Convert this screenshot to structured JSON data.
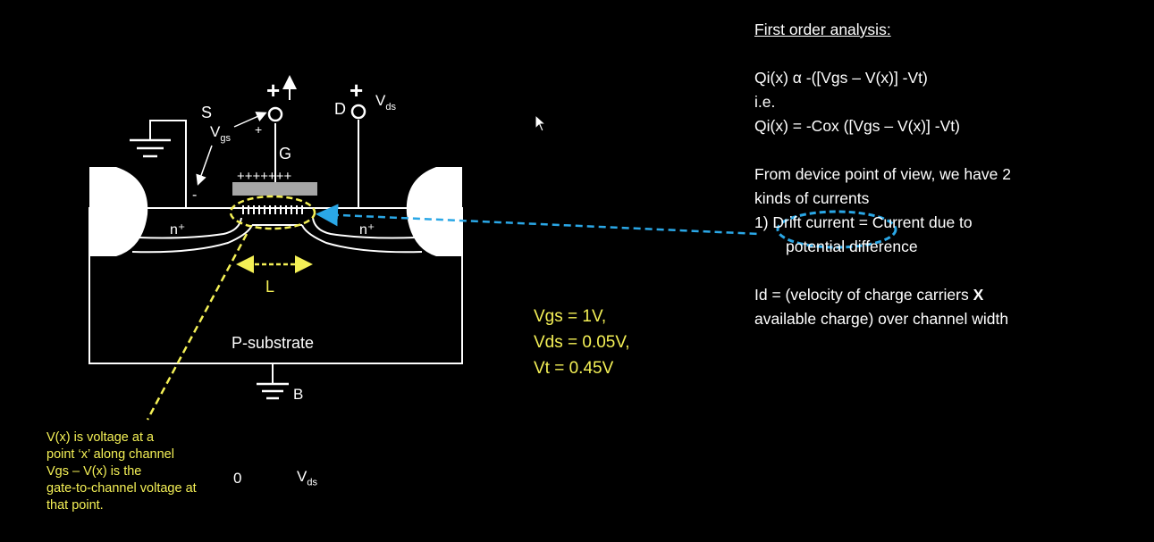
{
  "diagram": {
    "source_label": "S",
    "gate_label": "G",
    "drain_label": "D",
    "vgs_label": "V",
    "vgs_sub": "gs",
    "vds_label": "V",
    "vds_sub": "ds",
    "plus": "+",
    "minus": "-",
    "gate_charges": "+++++++",
    "n_plus_left": "n⁺",
    "n_plus_right": "n⁺",
    "length_label": "L",
    "substrate_label": "P-substrate",
    "body_label": "B",
    "zero_label": "0",
    "axis_vds_label": "V",
    "axis_vds_sub": "ds"
  },
  "bias_values": [
    "Vgs = 1V,",
    "Vds = 0.05V,",
    "Vt = 0.45V"
  ],
  "voltage_note": [
    "V(x) is voltage at a",
    "point ‘x’ along channel",
    "Vgs – V(x) is the",
    "gate-to-channel voltage at",
    "that point."
  ],
  "notes": {
    "heading": "First order analysis:",
    "line1": "Qi(x) α -([Vgs – V(x)] -Vt)",
    "line2": "i.e.",
    "line3": "Qi(x) = -Cox ([Vgs – V(x)] -Vt)",
    "line4": "From device point of view, we have 2",
    "line5": "kinds of currents",
    "line6": "1) Drift current = Current due to",
    "line7": "potential difference",
    "line8_a": "Id = (velocity of charge carriers ",
    "line8_b": "X",
    "line9": "available charge) over channel width"
  },
  "colors": {
    "annotation": "#f4f056",
    "link": "#2aa7e6",
    "background": "#000000",
    "gate_oxide": "#a6a6a6"
  }
}
